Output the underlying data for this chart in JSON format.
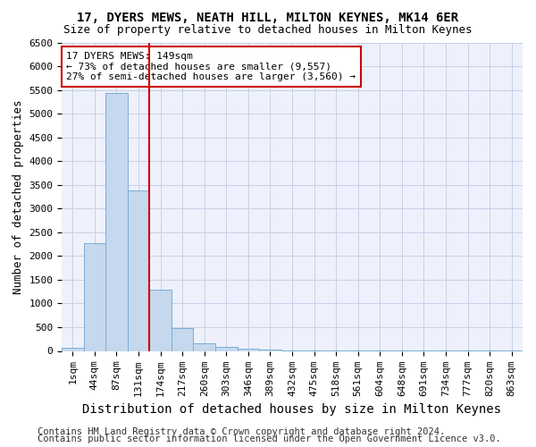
{
  "title1": "17, DYERS MEWS, NEATH HILL, MILTON KEYNES, MK14 6ER",
  "title2": "Size of property relative to detached houses in Milton Keynes",
  "xlabel": "Distribution of detached houses by size in Milton Keynes",
  "ylabel": "Number of detached properties",
  "bar_color": "#c5d8ee",
  "bar_edge_color": "#7aadd4",
  "annotation_box_text": "17 DYERS MEWS: 149sqm\n← 73% of detached houses are smaller (9,557)\n27% of semi-detached houses are larger (3,560) →",
  "vline_color": "#cc0000",
  "categories": [
    "1sqm",
    "44sqm",
    "87sqm",
    "131sqm",
    "174sqm",
    "217sqm",
    "260sqm",
    "303sqm",
    "346sqm",
    "389sqm",
    "432sqm",
    "475sqm",
    "518sqm",
    "561sqm",
    "604sqm",
    "648sqm",
    "691sqm",
    "734sqm",
    "777sqm",
    "820sqm",
    "863sqm"
  ],
  "values": [
    60,
    2270,
    5430,
    3390,
    1290,
    480,
    160,
    80,
    50,
    30,
    15,
    10,
    5,
    5,
    3,
    2,
    2,
    1,
    1,
    1,
    1
  ],
  "ylim": [
    0,
    6500
  ],
  "yticks": [
    0,
    500,
    1000,
    1500,
    2000,
    2500,
    3000,
    3500,
    4000,
    4500,
    5000,
    5500,
    6000,
    6500
  ],
  "footer1": "Contains HM Land Registry data © Crown copyright and database right 2024.",
  "footer2": "Contains public sector information licensed under the Open Government Licence v3.0.",
  "bg_color": "#eef1fb",
  "grid_color": "#c8cfe8",
  "title1_fontsize": 10,
  "title2_fontsize": 9,
  "annotation_fontsize": 8,
  "ylabel_fontsize": 9,
  "xlabel_fontsize": 10,
  "tick_fontsize": 8,
  "footer_fontsize": 7.5
}
